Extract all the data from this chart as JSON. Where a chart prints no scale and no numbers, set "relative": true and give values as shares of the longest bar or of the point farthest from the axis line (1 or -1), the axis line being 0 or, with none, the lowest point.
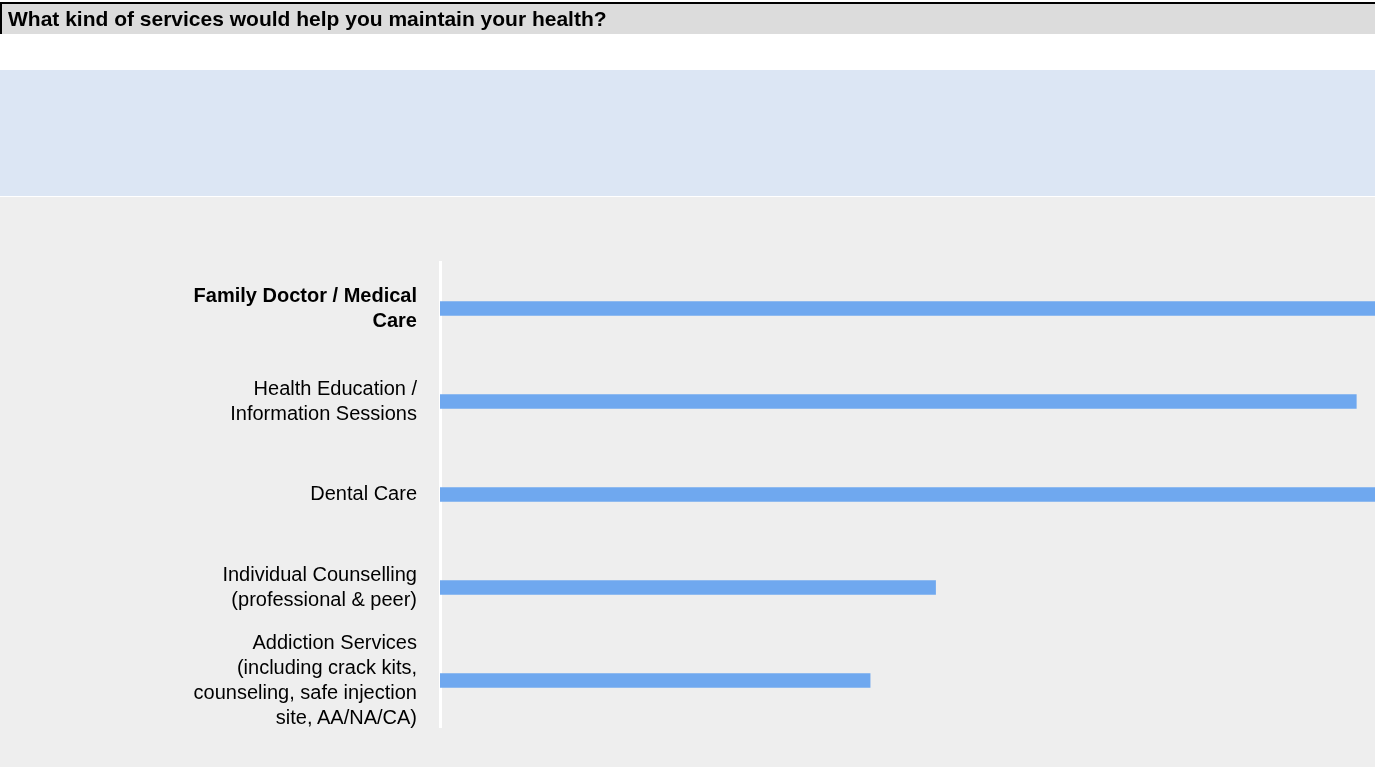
{
  "chart_data": {
    "type": "bar",
    "orientation": "horizontal",
    "relative": true,
    "title": "What kind of services would help you maintain your health?",
    "categories": [
      "Family Doctor / Medical Care",
      "Health Education / Information Sessions",
      "Dental Care",
      "Individual Counselling (professional & peer)",
      "Addiction Services (including crack kits, counseling, safe injection site, AA/NA/CA)"
    ],
    "values": [
      1,
      0.98,
      1,
      0.53,
      0.46
    ],
    "color": "#6fa8ef",
    "grid": false,
    "legend": false
  }
}
